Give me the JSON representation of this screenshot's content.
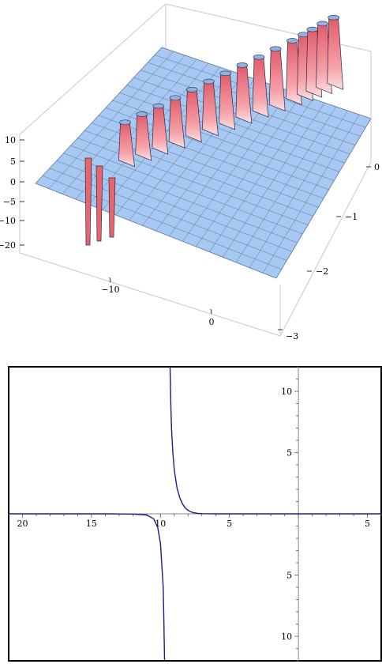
{
  "chart_data": [
    {
      "type": "surface",
      "title": "",
      "axes": {
        "x": {
          "ticks": [
            -10,
            0
          ],
          "tick_labels": [
            "−10",
            "0"
          ],
          "range": [
            -17,
            6
          ]
        },
        "y": {
          "ticks": [
            0,
            -1,
            -2,
            -3
          ],
          "tick_labels": [
            "0",
            "−1",
            "−2",
            "−3"
          ],
          "range": [
            -3,
            0.2
          ]
        },
        "z": {
          "ticks": [
            10,
            5,
            0,
            -5,
            -10,
            -20
          ],
          "tick_labels": [
            "10",
            "5",
            "0",
            "−5",
            "−10",
            "−20"
          ],
          "range": [
            -20,
            10
          ]
        }
      },
      "mesh": true,
      "colors": {
        "surface": "#a6c8f2",
        "ridge": "#f27a84",
        "mesh_line": "#4a5d78",
        "box": "#c8c8c8"
      },
      "ridge_peaks_x": [
        -13.5,
        -12,
        -10.5,
        -9,
        -7.5,
        -6,
        -4.5,
        -3,
        -1.5,
        0,
        1.5,
        2.5,
        3.3,
        4.2,
        5.2
      ]
    },
    {
      "type": "line",
      "title": "",
      "xlabel": "",
      "ylabel": "",
      "x_tick_labels": [
        "20",
        "15",
        "10",
        "5",
        "5"
      ],
      "x_tick_values": [
        -20,
        -15,
        -10,
        -5,
        5
      ],
      "y_tick_labels": [
        "10",
        "5",
        "5",
        "10"
      ],
      "y_tick_values": [
        10,
        5,
        -5,
        -10
      ],
      "xlim": [
        -21,
        6
      ],
      "ylim": [
        -12,
        12
      ],
      "grid": false,
      "series": [
        {
          "color": "#1c1c8c",
          "x": [
            -21,
            -14,
            -12,
            -11,
            -10.5,
            -10.2,
            -10.0,
            -9.8,
            -9.75,
            -9.7,
            -9.3,
            -9.25,
            -9.2,
            -9.1,
            -9.0,
            -8.8,
            -8.6,
            -8.4,
            -8.2,
            -8.0,
            -7.8,
            -7.6,
            -7.3,
            -7.0,
            -6.0,
            0,
            6
          ],
          "y": [
            0,
            0,
            -0.02,
            -0.1,
            -0.4,
            -1.1,
            -2.4,
            -6.0,
            -9.0,
            -12,
            12,
            9.0,
            7.0,
            5.0,
            3.6,
            2.1,
            1.3,
            0.8,
            0.48,
            0.28,
            0.16,
            0.09,
            0.04,
            0.015,
            0.0,
            0,
            0
          ]
        }
      ]
    }
  ]
}
